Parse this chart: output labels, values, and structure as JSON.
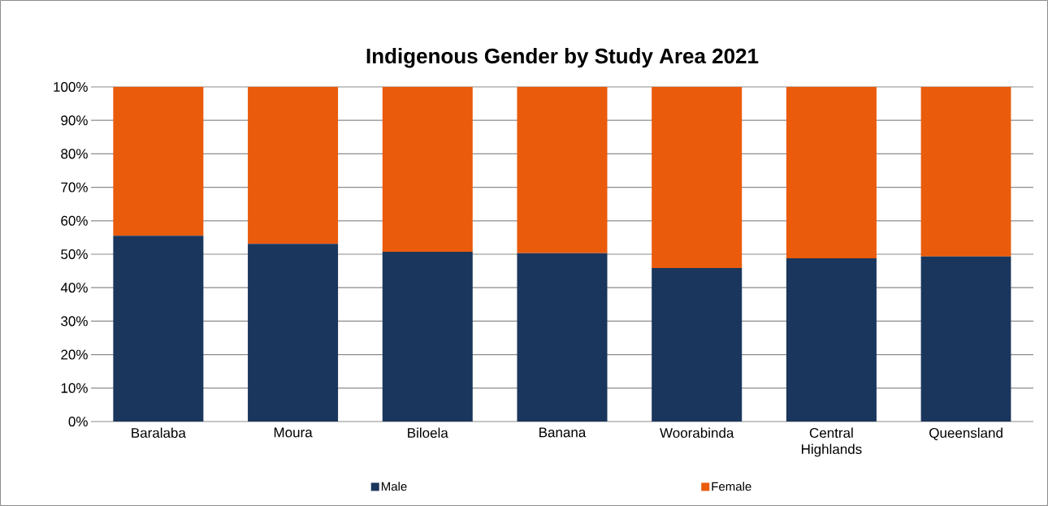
{
  "chart_data": {
    "type": "bar",
    "stacked": true,
    "title": "Indigenous Gender by Study Area 2021",
    "categories": [
      "Baralaba",
      "Moura",
      "Biloela",
      "Banana",
      "Woorabinda",
      "Central Highlands",
      "Queensland"
    ],
    "series": [
      {
        "name": "Male",
        "color": "#1b365d",
        "values": [
          55.5,
          53.1,
          50.7,
          50.3,
          45.9,
          48.8,
          49.3
        ]
      },
      {
        "name": "Female",
        "color": "#ea5b0c",
        "values": [
          44.5,
          46.9,
          49.3,
          49.7,
          54.1,
          51.2,
          50.7
        ]
      }
    ],
    "ylim": [
      0,
      100
    ],
    "yticks": [
      {
        "value": 0,
        "label": "0%"
      },
      {
        "value": 10,
        "label": "10%"
      },
      {
        "value": 20,
        "label": "20%"
      },
      {
        "value": 30,
        "label": "30%"
      },
      {
        "value": 40,
        "label": "40%"
      },
      {
        "value": 50,
        "label": "50%"
      },
      {
        "value": 60,
        "label": "60%"
      },
      {
        "value": 70,
        "label": "70%"
      },
      {
        "value": 80,
        "label": "80%"
      },
      {
        "value": 90,
        "label": "90%"
      },
      {
        "value": 100,
        "label": "100%"
      }
    ],
    "grid": "y",
    "legend": "bottom"
  }
}
